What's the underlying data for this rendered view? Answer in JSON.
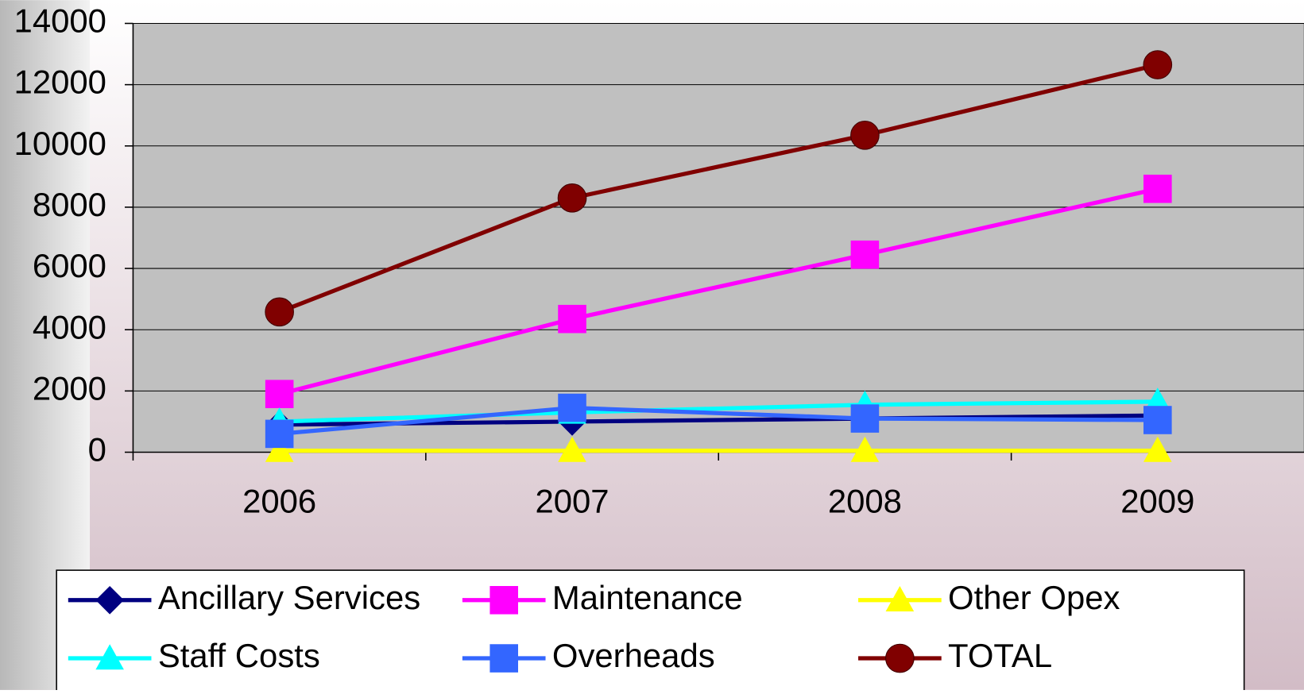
{
  "chart_data": {
    "type": "line",
    "categories": [
      "2006",
      "2007",
      "2008",
      "2009"
    ],
    "series": [
      {
        "name": "Ancillary Services",
        "color": "#000080",
        "marker": "diamond",
        "values": [
          900,
          1000,
          1100,
          1200
        ]
      },
      {
        "name": "Maintenance",
        "color": "#ff00ff",
        "marker": "square",
        "values": [
          1900,
          4350,
          6450,
          8600
        ]
      },
      {
        "name": "Other Opex",
        "color": "#ffff00",
        "marker": "triangle",
        "values": [
          50,
          50,
          50,
          50
        ]
      },
      {
        "name": "Staff Costs",
        "color": "#00ffff",
        "marker": "triangle",
        "values": [
          1000,
          1300,
          1550,
          1650
        ]
      },
      {
        "name": "Overheads",
        "color": "#3366ff",
        "marker": "square",
        "values": [
          600,
          1450,
          1100,
          1050
        ]
      },
      {
        "name": "TOTAL",
        "color": "#800000",
        "marker": "circle",
        "values": [
          4580,
          8300,
          10350,
          12650
        ]
      }
    ],
    "ylim": [
      0,
      14000
    ],
    "yticks": [
      0,
      2000,
      4000,
      6000,
      8000,
      10000,
      12000,
      14000
    ],
    "grid": true,
    "legend": "bottom"
  }
}
